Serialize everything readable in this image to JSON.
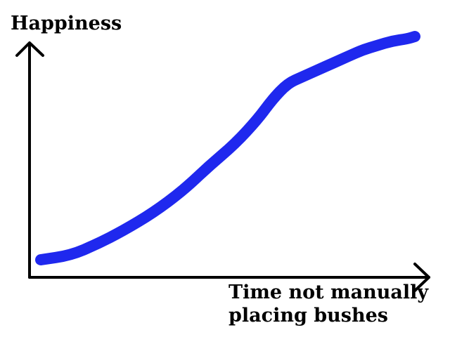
{
  "chart_data": {
    "type": "line",
    "title": "",
    "xlabel": "Time not manually placing bushes",
    "ylabel": "Happiness",
    "grid": false,
    "legend": "none",
    "series": [
      {
        "color": "#1f28ee",
        "x": [
          0.0,
          0.08,
          0.15,
          0.22,
          0.3,
          0.38,
          0.45,
          0.52,
          0.58,
          0.62,
          0.66,
          0.7,
          0.74,
          0.78,
          0.82,
          0.86,
          0.9,
          0.94,
          0.98,
          1.0
        ],
        "y": [
          0.0,
          0.02,
          0.07,
          0.13,
          0.21,
          0.31,
          0.42,
          0.52,
          0.63,
          0.72,
          0.79,
          0.82,
          0.85,
          0.88,
          0.91,
          0.94,
          0.96,
          0.98,
          0.99,
          1.0
        ]
      }
    ],
    "xlim": [
      0,
      1
    ],
    "ylim": [
      0,
      1
    ],
    "axis_color": "#000000"
  }
}
